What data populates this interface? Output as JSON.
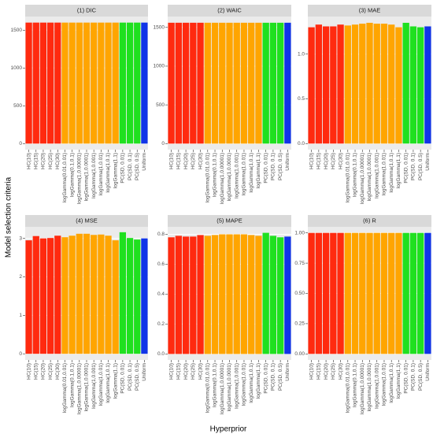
{
  "y_label": "Model selection criteria",
  "x_label": "Hyperprior",
  "chart_data": [
    {
      "type": "bar",
      "title": "(1) DIC",
      "categories": [
        "HC(10)",
        "HC(15)",
        "HC(20)",
        "HC(25)",
        "HC(30)",
        "logGamma(0.01,0.01)",
        "logGamma(0.1,0.1)",
        "logGamma(1,0.00001)",
        "logGamma(1,0.0001)",
        "logGamma(1,0.001)",
        "logGamma(1,0.01)",
        "logGamma(1,0.1)",
        "logGamma(1,1)",
        "PC(SD, 0.01)",
        "PC(SD, 0.1)",
        "PC(SD, 0.5)",
        "Uniform"
      ],
      "values": [
        1600,
        1600,
        1600,
        1600,
        1600,
        1600,
        1600,
        1600,
        1600,
        1600,
        1600,
        1600,
        1600,
        1600,
        1600,
        1600,
        1600
      ],
      "colors": [
        "#ff2a0f",
        "#ff2a0f",
        "#ff2a0f",
        "#ff2a0f",
        "#ff2a0f",
        "#ffa500",
        "#ffa500",
        "#ffa500",
        "#ffa500",
        "#ffa500",
        "#ffa500",
        "#ffa500",
        "#ffa500",
        "#1fe01f",
        "#1fe01f",
        "#1fe01f",
        "#1034e8"
      ],
      "ylim": [
        -80,
        1680
      ],
      "yticks": [
        0,
        500,
        1000,
        1500
      ],
      "grid": true
    },
    {
      "type": "bar",
      "title": "(2) WAIC",
      "categories": [
        "HC(10)",
        "HC(15)",
        "HC(20)",
        "HC(25)",
        "HC(30)",
        "logGamma(0.01,0.01)",
        "logGamma(0.1,0.1)",
        "logGamma(1,0.00001)",
        "logGamma(1,0.0001)",
        "logGamma(1,0.001)",
        "logGamma(1,0.01)",
        "logGamma(1,0.1)",
        "logGamma(1,1)",
        "PC(SD, 0.01)",
        "PC(SD, 0.1)",
        "PC(SD, 0.5)",
        "Uniform"
      ],
      "values": [
        1560,
        1560,
        1560,
        1560,
        1560,
        1560,
        1560,
        1560,
        1560,
        1560,
        1560,
        1560,
        1560,
        1560,
        1560,
        1560,
        1560
      ],
      "colors": [
        "#ff2a0f",
        "#ff2a0f",
        "#ff2a0f",
        "#ff2a0f",
        "#ff2a0f",
        "#ffa500",
        "#ffa500",
        "#ffa500",
        "#ffa500",
        "#ffa500",
        "#ffa500",
        "#ffa500",
        "#ffa500",
        "#1fe01f",
        "#1fe01f",
        "#1fe01f",
        "#1034e8"
      ],
      "ylim": [
        -78,
        1640
      ],
      "yticks": [
        0,
        500,
        1000,
        1500
      ],
      "grid": true
    },
    {
      "type": "bar",
      "title": "(3) MAE",
      "categories": [
        "HC(10)",
        "HC(15)",
        "HC(20)",
        "HC(25)",
        "HC(30)",
        "logGamma(0.01,0.01)",
        "logGamma(0.1,0.1)",
        "logGamma(1,0.00001)",
        "logGamma(1,0.0001)",
        "logGamma(1,0.001)",
        "logGamma(1,0.01)",
        "logGamma(1,0.1)",
        "logGamma(1,1)",
        "PC(SD, 0.01)",
        "PC(SD, 0.1)",
        "PC(SD, 0.5)",
        "Uniform"
      ],
      "values": [
        1.3,
        1.33,
        1.31,
        1.31,
        1.33,
        1.32,
        1.33,
        1.34,
        1.35,
        1.34,
        1.34,
        1.33,
        1.3,
        1.35,
        1.31,
        1.3,
        1.31
      ],
      "colors": [
        "#ff2a0f",
        "#ff2a0f",
        "#ff2a0f",
        "#ff2a0f",
        "#ff2a0f",
        "#ffa500",
        "#ffa500",
        "#ffa500",
        "#ffa500",
        "#ffa500",
        "#ffa500",
        "#ffa500",
        "#ffa500",
        "#1fe01f",
        "#1fe01f",
        "#1fe01f",
        "#1034e8"
      ],
      "ylim": [
        -0.068,
        1.42
      ],
      "yticks": [
        {
          "value": 0,
          "label": "0.0"
        },
        0.5,
        {
          "value": 1,
          "label": "1.0"
        }
      ],
      "grid": true
    },
    {
      "type": "bar",
      "title": "(4) MSE",
      "categories": [
        "HC(10)",
        "HC(15)",
        "HC(20)",
        "HC(25)",
        "HC(30)",
        "logGamma(0.01,0.01)",
        "logGamma(0.1,0.1)",
        "logGamma(1,0.00001)",
        "logGamma(1,0.0001)",
        "logGamma(1,0.001)",
        "logGamma(1,0.01)",
        "logGamma(1,0.1)",
        "logGamma(1,1)",
        "PC(SD, 0.01)",
        "PC(SD, 0.1)",
        "PC(SD, 0.5)",
        "Uniform"
      ],
      "values": [
        2.95,
        3.06,
        3.0,
        3.01,
        3.07,
        3.03,
        3.07,
        3.12,
        3.12,
        3.09,
        3.1,
        3.07,
        2.95,
        3.16,
        3.01,
        2.97,
        3.0
      ],
      "colors": [
        "#ff2a0f",
        "#ff2a0f",
        "#ff2a0f",
        "#ff2a0f",
        "#ff2a0f",
        "#ffa500",
        "#ffa500",
        "#ffa500",
        "#ffa500",
        "#ffa500",
        "#ffa500",
        "#ffa500",
        "#ffa500",
        "#1fe01f",
        "#1fe01f",
        "#1fe01f",
        "#1034e8"
      ],
      "ylim": [
        -0.16,
        3.3
      ],
      "yticks": [
        0,
        1,
        2,
        3
      ],
      "grid": true
    },
    {
      "type": "bar",
      "title": "(5) MAPE",
      "categories": [
        "HC(10)",
        "HC(15)",
        "HC(20)",
        "HC(25)",
        "HC(30)",
        "logGamma(0.01,0.01)",
        "logGamma(0.1,0.1)",
        "logGamma(1,0.00001)",
        "logGamma(1,0.0001)",
        "logGamma(1,0.001)",
        "logGamma(1,0.01)",
        "logGamma(1,0.1)",
        "logGamma(1,1)",
        "PC(SD, 0.01)",
        "PC(SD, 0.1)",
        "PC(SD, 0.5)",
        "Uniform"
      ],
      "values": [
        0.78,
        0.79,
        0.785,
        0.785,
        0.795,
        0.79,
        0.795,
        0.8,
        0.8,
        0.8,
        0.8,
        0.795,
        0.79,
        0.81,
        0.79,
        0.78,
        0.785
      ],
      "colors": [
        "#ff2a0f",
        "#ff2a0f",
        "#ff2a0f",
        "#ff2a0f",
        "#ff2a0f",
        "#ffa500",
        "#ffa500",
        "#ffa500",
        "#ffa500",
        "#ffa500",
        "#ffa500",
        "#ffa500",
        "#ffa500",
        "#1fe01f",
        "#1fe01f",
        "#1fe01f",
        "#1034e8"
      ],
      "ylim": [
        -0.04,
        0.85
      ],
      "yticks": [
        {
          "value": 0,
          "label": "0.0"
        },
        0.2,
        0.4,
        0.6,
        0.8
      ],
      "grid": true
    },
    {
      "type": "bar",
      "title": "(6) R",
      "categories": [
        "HC(10)",
        "HC(15)",
        "HC(20)",
        "HC(25)",
        "HC(30)",
        "logGamma(0.01,0.01)",
        "logGamma(0.1,0.1)",
        "logGamma(1,0.00001)",
        "logGamma(1,0.0001)",
        "logGamma(1,0.001)",
        "logGamma(1,0.01)",
        "logGamma(1,0.1)",
        "logGamma(1,1)",
        "PC(SD, 0.01)",
        "PC(SD, 0.1)",
        "PC(SD, 0.5)",
        "Uniform"
      ],
      "values": [
        1.0,
        1.0,
        1.0,
        1.0,
        1.0,
        1.0,
        1.0,
        1.0,
        1.0,
        1.0,
        1.0,
        1.0,
        1.0,
        1.0,
        1.0,
        1.0,
        1.0
      ],
      "colors": [
        "#ff2a0f",
        "#ff2a0f",
        "#ff2a0f",
        "#ff2a0f",
        "#ff2a0f",
        "#ffa500",
        "#ffa500",
        "#ffa500",
        "#ffa500",
        "#ffa500",
        "#ffa500",
        "#ffa500",
        "#ffa500",
        "#1fe01f",
        "#1fe01f",
        "#1fe01f",
        "#1034e8"
      ],
      "ylim": [
        -0.05,
        1.05
      ],
      "yticks": [
        {
          "value": 0,
          "label": "0.00"
        },
        {
          "value": 0.25,
          "label": "0.25"
        },
        {
          "value": 0.5,
          "label": "0.50"
        },
        {
          "value": 0.75,
          "label": "0.75"
        },
        {
          "value": 1,
          "label": "1.00"
        }
      ],
      "grid": true
    }
  ]
}
